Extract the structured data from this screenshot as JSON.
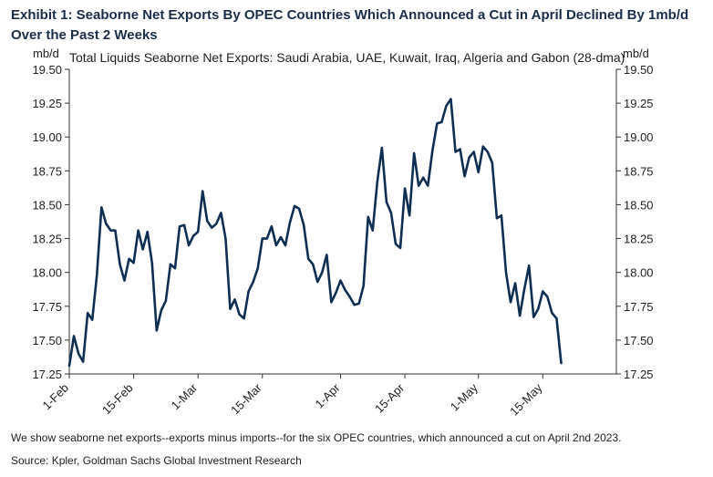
{
  "exhibit_title": "Exhibit 1: Seaborne Net Exports By OPEC Countries Which Announced a Cut in April Declined By 1mb/d Over the Past 2 Weeks",
  "footnote": "We show seaborne net exports--exports minus imports--for the six OPEC countries, which announced a cut on April 2nd 2023.",
  "source": "Source: Kpler, Goldman Sachs Global Investment Research",
  "colors": {
    "line": "#0f2f52",
    "axis": "#333333"
  },
  "chart_data": {
    "type": "line",
    "title": "Total Liquids Seaborne Net Exports: Saudi Arabia, UAE, Kuwait, Iraq, Algeria and Gabon (28-dma)",
    "ylabel_left": "mb/d",
    "ylabel_right": "mb/d",
    "ylim": [
      17.25,
      19.5
    ],
    "yticks": [
      "17.25",
      "17.50",
      "17.75",
      "18.00",
      "18.25",
      "18.50",
      "18.75",
      "19.00",
      "19.25",
      "19.50"
    ],
    "xlim": [
      "2023-02-01",
      "2023-05-31"
    ],
    "xticks": [
      {
        "date": "2023-02-01",
        "label": "1-Feb"
      },
      {
        "date": "2023-02-15",
        "label": "15-Feb"
      },
      {
        "date": "2023-03-01",
        "label": "1-Mar"
      },
      {
        "date": "2023-03-15",
        "label": "15-Mar"
      },
      {
        "date": "2023-04-01",
        "label": "1-Apr"
      },
      {
        "date": "2023-04-15",
        "label": "15-Apr"
      },
      {
        "date": "2023-05-01",
        "label": "1-May"
      },
      {
        "date": "2023-05-15",
        "label": "15-May"
      }
    ],
    "grid": false,
    "series": [
      {
        "points": [
          [
            "2023-02-01",
            17.31
          ],
          [
            "2023-02-02",
            17.53
          ],
          [
            "2023-02-03",
            17.4
          ],
          [
            "2023-02-04",
            17.34
          ],
          [
            "2023-02-05",
            17.7
          ],
          [
            "2023-02-06",
            17.65
          ],
          [
            "2023-02-07",
            17.98
          ],
          [
            "2023-02-08",
            18.48
          ],
          [
            "2023-02-09",
            18.36
          ],
          [
            "2023-02-10",
            18.31
          ],
          [
            "2023-02-11",
            18.31
          ],
          [
            "2023-02-12",
            18.06
          ],
          [
            "2023-02-13",
            17.94
          ],
          [
            "2023-02-14",
            18.1
          ],
          [
            "2023-02-15",
            18.07
          ],
          [
            "2023-02-16",
            18.31
          ],
          [
            "2023-02-17",
            18.17
          ],
          [
            "2023-02-18",
            18.3
          ],
          [
            "2023-02-19",
            18.07
          ],
          [
            "2023-02-20",
            17.57
          ],
          [
            "2023-02-21",
            17.72
          ],
          [
            "2023-02-22",
            17.79
          ],
          [
            "2023-02-23",
            18.06
          ],
          [
            "2023-02-24",
            18.03
          ],
          [
            "2023-02-25",
            18.34
          ],
          [
            "2023-02-26",
            18.35
          ],
          [
            "2023-02-27",
            18.2
          ],
          [
            "2023-02-28",
            18.27
          ],
          [
            "2023-03-01",
            18.3
          ],
          [
            "2023-03-02",
            18.6
          ],
          [
            "2023-03-03",
            18.38
          ],
          [
            "2023-03-04",
            18.33
          ],
          [
            "2023-03-05",
            18.36
          ],
          [
            "2023-03-06",
            18.44
          ],
          [
            "2023-03-07",
            18.25
          ],
          [
            "2023-03-08",
            17.73
          ],
          [
            "2023-03-09",
            17.8
          ],
          [
            "2023-03-10",
            17.69
          ],
          [
            "2023-03-11",
            17.66
          ],
          [
            "2023-03-12",
            17.86
          ],
          [
            "2023-03-13",
            17.93
          ],
          [
            "2023-03-14",
            18.03
          ],
          [
            "2023-03-15",
            18.25
          ],
          [
            "2023-03-16",
            18.25
          ],
          [
            "2023-03-17",
            18.34
          ],
          [
            "2023-03-18",
            18.2
          ],
          [
            "2023-03-19",
            18.26
          ],
          [
            "2023-03-20",
            18.2
          ],
          [
            "2023-03-21",
            18.37
          ],
          [
            "2023-03-22",
            18.49
          ],
          [
            "2023-03-23",
            18.47
          ],
          [
            "2023-03-24",
            18.35
          ],
          [
            "2023-03-25",
            18.1
          ],
          [
            "2023-03-26",
            18.06
          ],
          [
            "2023-03-27",
            17.93
          ],
          [
            "2023-03-28",
            18.0
          ],
          [
            "2023-03-29",
            18.13
          ],
          [
            "2023-03-30",
            17.78
          ],
          [
            "2023-03-31",
            17.85
          ],
          [
            "2023-04-01",
            17.94
          ],
          [
            "2023-04-02",
            17.87
          ],
          [
            "2023-04-03",
            17.82
          ],
          [
            "2023-04-04",
            17.76
          ],
          [
            "2023-04-05",
            17.77
          ],
          [
            "2023-04-06",
            17.9
          ],
          [
            "2023-04-07",
            18.41
          ],
          [
            "2023-04-08",
            18.31
          ],
          [
            "2023-04-09",
            18.67
          ],
          [
            "2023-04-10",
            18.92
          ],
          [
            "2023-04-11",
            18.52
          ],
          [
            "2023-04-12",
            18.44
          ],
          [
            "2023-04-13",
            18.21
          ],
          [
            "2023-04-14",
            18.18
          ],
          [
            "2023-04-15",
            18.62
          ],
          [
            "2023-04-16",
            18.42
          ],
          [
            "2023-04-17",
            18.88
          ],
          [
            "2023-04-18",
            18.64
          ],
          [
            "2023-04-19",
            18.7
          ],
          [
            "2023-04-20",
            18.64
          ],
          [
            "2023-04-21",
            18.9
          ],
          [
            "2023-04-22",
            19.1
          ],
          [
            "2023-04-23",
            19.11
          ],
          [
            "2023-04-24",
            19.23
          ],
          [
            "2023-04-25",
            19.28
          ],
          [
            "2023-04-26",
            18.89
          ],
          [
            "2023-04-27",
            18.91
          ],
          [
            "2023-04-28",
            18.71
          ],
          [
            "2023-04-29",
            18.85
          ],
          [
            "2023-04-30",
            18.89
          ],
          [
            "2023-05-01",
            18.74
          ],
          [
            "2023-05-02",
            18.93
          ],
          [
            "2023-05-03",
            18.89
          ],
          [
            "2023-05-04",
            18.81
          ],
          [
            "2023-05-05",
            18.4
          ],
          [
            "2023-05-06",
            18.42
          ],
          [
            "2023-05-07",
            18.0
          ],
          [
            "2023-05-08",
            17.78
          ],
          [
            "2023-05-09",
            17.92
          ],
          [
            "2023-05-10",
            17.68
          ],
          [
            "2023-05-11",
            17.88
          ],
          [
            "2023-05-12",
            18.05
          ],
          [
            "2023-05-13",
            17.67
          ],
          [
            "2023-05-14",
            17.73
          ],
          [
            "2023-05-15",
            17.86
          ],
          [
            "2023-05-16",
            17.82
          ],
          [
            "2023-05-17",
            17.7
          ],
          [
            "2023-05-18",
            17.66
          ],
          [
            "2023-05-19",
            17.33
          ]
        ]
      }
    ]
  }
}
